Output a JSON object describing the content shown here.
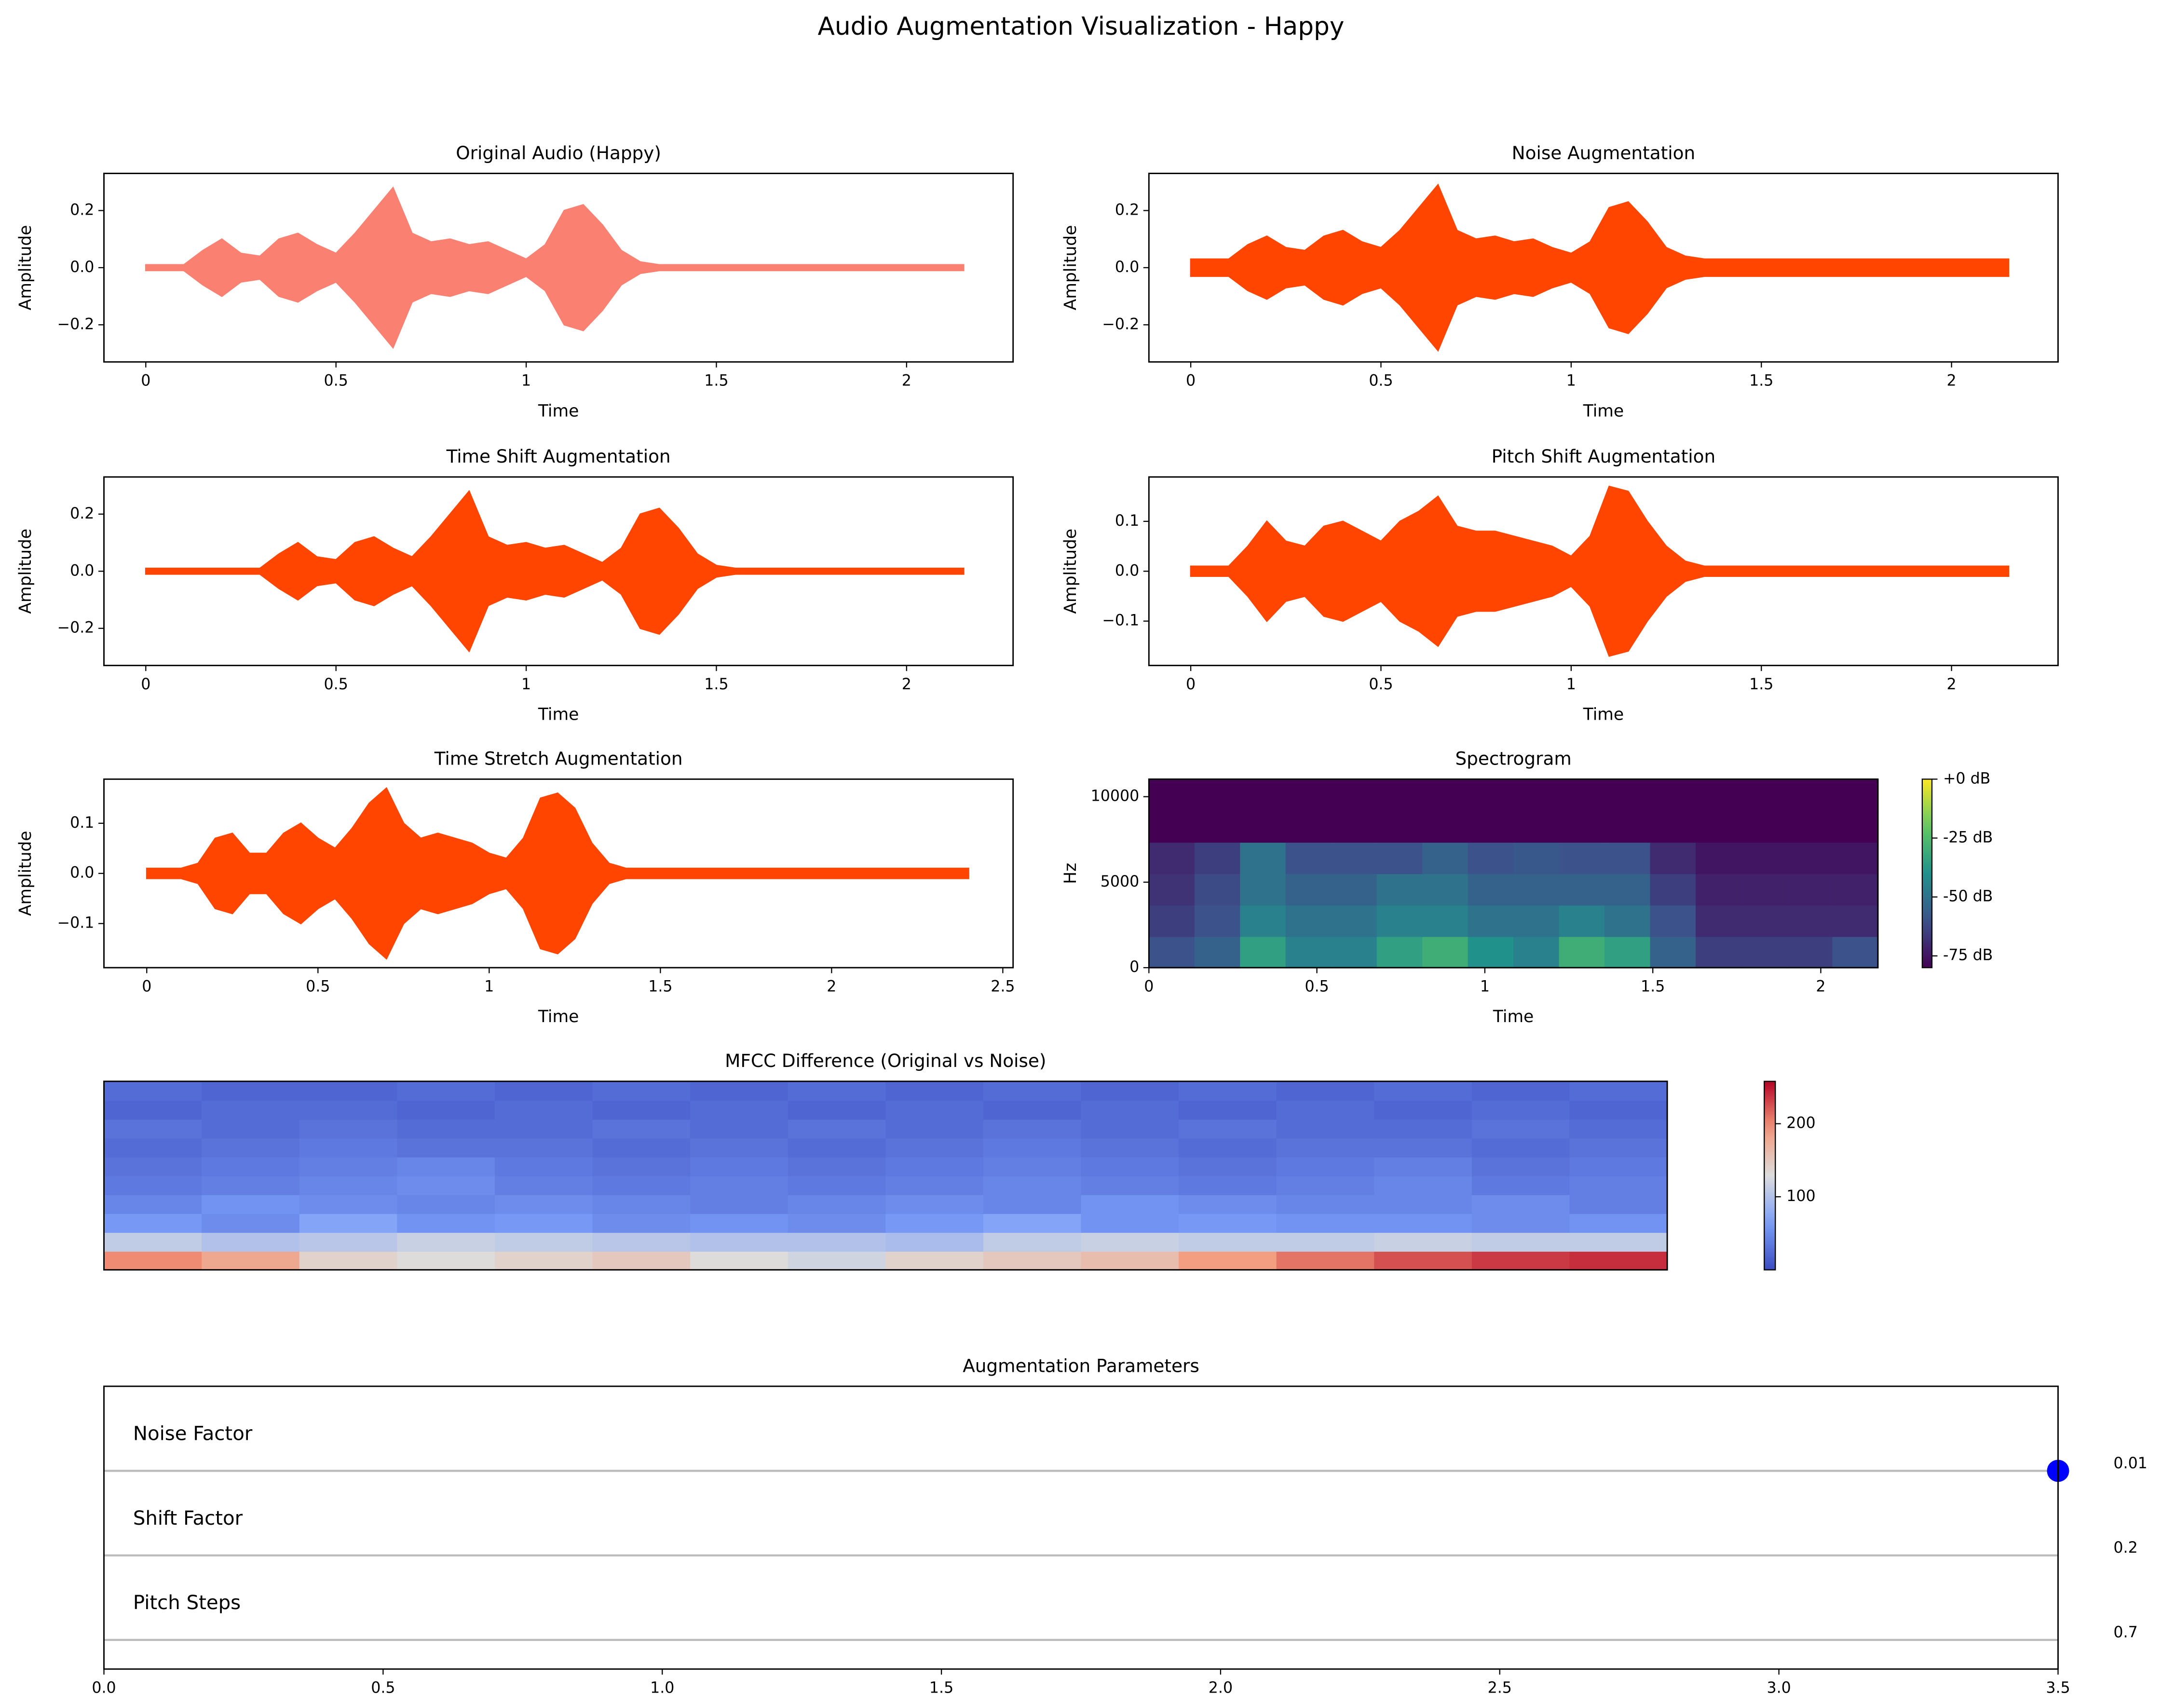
{
  "title": "Audio Augmentation Visualization - Happy",
  "chart_data": [
    {
      "type": "line",
      "title": "Original Audio (Happy)",
      "xlabel": "Time",
      "ylabel": "Amplitude",
      "color": "#fa8072",
      "x": [
        0,
        0.05,
        0.1,
        0.15,
        0.2,
        0.25,
        0.3,
        0.35,
        0.4,
        0.45,
        0.5,
        0.55,
        0.6,
        0.65,
        0.7,
        0.75,
        0.8,
        0.85,
        0.9,
        0.95,
        1,
        1.05,
        1.1,
        1.15,
        1.2,
        1.25,
        1.3,
        1.35,
        1.4,
        1.45,
        1.5,
        1.55,
        1.6,
        1.65,
        1.7,
        1.75,
        1.8,
        1.85,
        1.9,
        1.95,
        2,
        2.05,
        2.1,
        2.15
      ],
      "values": [
        0.01,
        0.01,
        0.01,
        0.06,
        0.1,
        0.05,
        0.04,
        0.1,
        0.12,
        0.08,
        0.05,
        0.12,
        0.2,
        0.28,
        0.12,
        0.09,
        0.1,
        0.08,
        0.09,
        0.06,
        0.03,
        0.08,
        0.2,
        0.22,
        0.15,
        0.06,
        0.02,
        0.01,
        0.01,
        0.01,
        0.01,
        0.01,
        0.01,
        0.01,
        0.01,
        0.01,
        0.01,
        0.01,
        0.01,
        0.01,
        0.01,
        0.01,
        0.01,
        0.01
      ],
      "xlim": [
        -0.11,
        2.28
      ],
      "ylim": [
        -0.33,
        0.33
      ],
      "xticks": [
        0,
        0.5,
        1,
        1.5,
        2
      ],
      "yticks": [
        {
          "value": -0.2,
          "label": "−0.2"
        },
        {
          "value": 0,
          "label": "0.0"
        },
        0.2
      ]
    },
    {
      "type": "line",
      "title": "Noise Augmentation",
      "xlabel": "Time",
      "ylabel": "Amplitude",
      "color": "#ff4500",
      "x": [
        0,
        0.05,
        0.1,
        0.15,
        0.2,
        0.25,
        0.3,
        0.35,
        0.4,
        0.45,
        0.5,
        0.55,
        0.6,
        0.65,
        0.7,
        0.75,
        0.8,
        0.85,
        0.9,
        0.95,
        1,
        1.05,
        1.1,
        1.15,
        1.2,
        1.25,
        1.3,
        1.35,
        1.4,
        1.45,
        1.5,
        1.55,
        1.6,
        1.65,
        1.7,
        1.75,
        1.8,
        1.85,
        1.9,
        1.95,
        2,
        2.05,
        2.1,
        2.15
      ],
      "values": [
        0.03,
        0.03,
        0.03,
        0.08,
        0.11,
        0.07,
        0.06,
        0.11,
        0.13,
        0.09,
        0.07,
        0.13,
        0.21,
        0.29,
        0.13,
        0.1,
        0.11,
        0.09,
        0.1,
        0.07,
        0.05,
        0.09,
        0.21,
        0.23,
        0.16,
        0.07,
        0.04,
        0.03,
        0.03,
        0.03,
        0.03,
        0.03,
        0.03,
        0.03,
        0.03,
        0.03,
        0.03,
        0.03,
        0.03,
        0.03,
        0.03,
        0.03,
        0.03,
        0.03
      ],
      "xlim": [
        -0.11,
        2.28
      ],
      "ylim": [
        -0.33,
        0.33
      ],
      "xticks": [
        0,
        0.5,
        1,
        1.5,
        2
      ],
      "yticks": [
        {
          "value": -0.2,
          "label": "−0.2"
        },
        {
          "value": 0,
          "label": "0.0"
        },
        0.2
      ]
    },
    {
      "type": "line",
      "title": "Time Shift Augmentation",
      "xlabel": "Time",
      "ylabel": "Amplitude",
      "color": "#ff4500",
      "x": [
        0,
        0.05,
        0.1,
        0.15,
        0.2,
        0.25,
        0.3,
        0.35,
        0.4,
        0.45,
        0.5,
        0.55,
        0.6,
        0.65,
        0.7,
        0.75,
        0.8,
        0.85,
        0.9,
        0.95,
        1,
        1.05,
        1.1,
        1.15,
        1.2,
        1.25,
        1.3,
        1.35,
        1.4,
        1.45,
        1.5,
        1.55,
        1.6,
        1.65,
        1.7,
        1.75,
        1.8,
        1.85,
        1.9,
        1.95,
        2,
        2.05,
        2.1,
        2.15
      ],
      "values": [
        0.01,
        0.01,
        0.01,
        0.01,
        0.01,
        0.01,
        0.01,
        0.06,
        0.1,
        0.05,
        0.04,
        0.1,
        0.12,
        0.08,
        0.05,
        0.12,
        0.2,
        0.28,
        0.12,
        0.09,
        0.1,
        0.08,
        0.09,
        0.06,
        0.03,
        0.08,
        0.2,
        0.22,
        0.15,
        0.06,
        0.02,
        0.01,
        0.01,
        0.01,
        0.01,
        0.01,
        0.01,
        0.01,
        0.01,
        0.01,
        0.01,
        0.01,
        0.01,
        0.01
      ],
      "xlim": [
        -0.11,
        2.28
      ],
      "ylim": [
        -0.33,
        0.33
      ],
      "xticks": [
        0,
        0.5,
        1,
        1.5,
        2
      ],
      "yticks": [
        {
          "value": -0.2,
          "label": "−0.2"
        },
        {
          "value": 0,
          "label": "0.0"
        },
        0.2
      ]
    },
    {
      "type": "line",
      "title": "Pitch Shift Augmentation",
      "xlabel": "Time",
      "ylabel": "Amplitude",
      "color": "#ff4500",
      "x": [
        0,
        0.05,
        0.1,
        0.15,
        0.2,
        0.25,
        0.3,
        0.35,
        0.4,
        0.45,
        0.5,
        0.55,
        0.6,
        0.65,
        0.7,
        0.75,
        0.8,
        0.85,
        0.9,
        0.95,
        1,
        1.05,
        1.1,
        1.15,
        1.2,
        1.25,
        1.3,
        1.35,
        1.4,
        1.45,
        1.5,
        1.55,
        1.6,
        1.65,
        1.7,
        1.75,
        1.8,
        1.85,
        1.9,
        1.95,
        2,
        2.05,
        2.1,
        2.15
      ],
      "values": [
        0.01,
        0.01,
        0.01,
        0.05,
        0.1,
        0.06,
        0.05,
        0.09,
        0.1,
        0.08,
        0.06,
        0.1,
        0.12,
        0.15,
        0.09,
        0.08,
        0.08,
        0.07,
        0.06,
        0.05,
        0.03,
        0.07,
        0.17,
        0.16,
        0.1,
        0.05,
        0.02,
        0.01,
        0.01,
        0.01,
        0.01,
        0.01,
        0.01,
        0.01,
        0.01,
        0.01,
        0.01,
        0.01,
        0.01,
        0.01,
        0.01,
        0.01,
        0.01,
        0.01
      ],
      "xlim": [
        -0.11,
        2.28
      ],
      "ylim": [
        -0.189,
        0.189
      ],
      "xticks": [
        0,
        0.5,
        1,
        1.5,
        2
      ],
      "yticks": [
        {
          "value": -0.1,
          "label": "−0.1"
        },
        {
          "value": 0,
          "label": "0.0"
        },
        0.1
      ]
    },
    {
      "type": "line",
      "title": "Time Stretch Augmentation",
      "xlabel": "Time",
      "ylabel": "Amplitude",
      "color": "#ff4500",
      "x": [
        0,
        0.05,
        0.1,
        0.15,
        0.2,
        0.25,
        0.3,
        0.35,
        0.4,
        0.45,
        0.5,
        0.55,
        0.6,
        0.65,
        0.7,
        0.75,
        0.8,
        0.85,
        0.9,
        0.95,
        1,
        1.05,
        1.1,
        1.15,
        1.2,
        1.25,
        1.3,
        1.35,
        1.4,
        1.45,
        1.5,
        1.55,
        1.6,
        1.65,
        1.7,
        1.75,
        1.8,
        1.85,
        1.9,
        1.95,
        2,
        2.05,
        2.1,
        2.15,
        2.2,
        2.25,
        2.3,
        2.35,
        2.4
      ],
      "values": [
        0.01,
        0.01,
        0.01,
        0.02,
        0.07,
        0.08,
        0.04,
        0.04,
        0.08,
        0.1,
        0.07,
        0.05,
        0.09,
        0.14,
        0.17,
        0.1,
        0.07,
        0.08,
        0.07,
        0.06,
        0.04,
        0.03,
        0.07,
        0.15,
        0.16,
        0.13,
        0.06,
        0.02,
        0.01,
        0.01,
        0.01,
        0.01,
        0.01,
        0.01,
        0.01,
        0.01,
        0.01,
        0.01,
        0.01,
        0.01,
        0.01,
        0.01,
        0.01,
        0.01,
        0.01,
        0.01,
        0.01,
        0.01,
        0.01
      ],
      "xlim": [
        -0.125,
        2.53
      ],
      "ylim": [
        -0.188,
        0.188
      ],
      "xticks": [
        0,
        0.5,
        1,
        1.5,
        2,
        2.5
      ],
      "yticks": [
        {
          "value": -0.1,
          "label": "−0.1"
        },
        {
          "value": 0,
          "label": "0.0"
        },
        0.1
      ]
    },
    {
      "type": "heatmap",
      "title": "Spectrogram",
      "xlabel": "Time",
      "ylabel": "Hz",
      "colormap": "viridis",
      "xlim": [
        0,
        2.17
      ],
      "ylim": [
        0,
        11025
      ],
      "xticks": [
        0,
        0.5,
        1,
        1.5,
        2
      ],
      "yticks": [
        0,
        5000,
        10000
      ],
      "clim": [
        -80,
        0
      ],
      "cticks": [
        {
          "value": 0,
          "label": "+0 dB"
        },
        {
          "value": -25,
          "label": "-25 dB"
        },
        {
          "value": -50,
          "label": "-50 dB"
        },
        {
          "value": -75,
          "label": "-75 dB"
        }
      ],
      "matrix": [
        [
          -60,
          -55,
          -35,
          -45,
          -45,
          -35,
          -30,
          -40,
          -45,
          -30,
          -35,
          -55,
          -65,
          -65,
          -65,
          -60
        ],
        [
          -65,
          -60,
          -45,
          -50,
          -50,
          -45,
          -45,
          -50,
          -50,
          -45,
          -50,
          -60,
          -70,
          -70,
          -70,
          -70
        ],
        [
          -68,
          -62,
          -50,
          -55,
          -55,
          -50,
          -50,
          -55,
          -55,
          -55,
          -55,
          -65,
          -72,
          -72,
          -72,
          -72
        ],
        [
          -70,
          -65,
          -50,
          -60,
          -60,
          -60,
          -55,
          -60,
          -58,
          -60,
          -60,
          -70,
          -75,
          -75,
          -75,
          -75
        ],
        [
          -80,
          -80,
          -80,
          -80,
          -80,
          -80,
          -80,
          -80,
          -80,
          -80,
          -80,
          -80,
          -80,
          -80,
          -80,
          -80
        ],
        [
          -80,
          -80,
          -80,
          -80,
          -80,
          -80,
          -80,
          -80,
          -80,
          -80,
          -80,
          -80,
          -80,
          -80,
          -80,
          -80
        ]
      ]
    },
    {
      "type": "heatmap",
      "title": "MFCC Difference (Original vs Noise)",
      "colormap": "coolwarm",
      "clim": [
        0,
        258
      ],
      "cticks": [
        100,
        200
      ],
      "matrix": [
        [
          200,
          180,
          140,
          130,
          140,
          150,
          130,
          120,
          140,
          150,
          160,
          190,
          210,
          225,
          235,
          240
        ],
        [
          110,
          100,
          105,
          115,
          110,
          105,
          100,
          100,
          95,
          110,
          115,
          110,
          110,
          115,
          110,
          110
        ],
        [
          60,
          50,
          70,
          55,
          60,
          50,
          55,
          50,
          60,
          70,
          55,
          60,
          55,
          55,
          50,
          55
        ],
        [
          45,
          55,
          50,
          45,
          50,
          45,
          40,
          45,
          50,
          45,
          55,
          50,
          45,
          45,
          50,
          40
        ],
        [
          35,
          40,
          45,
          50,
          40,
          35,
          40,
          35,
          40,
          45,
          40,
          35,
          40,
          45,
          35,
          40
        ],
        [
          30,
          35,
          40,
          45,
          35,
          30,
          35,
          30,
          35,
          40,
          35,
          30,
          35,
          40,
          30,
          35
        ],
        [
          25,
          30,
          35,
          30,
          30,
          25,
          30,
          25,
          30,
          35,
          30,
          25,
          30,
          30,
          25,
          30
        ],
        [
          30,
          25,
          30,
          25,
          25,
          30,
          25,
          30,
          25,
          30,
          25,
          30,
          25,
          25,
          30,
          25
        ],
        [
          20,
          25,
          25,
          20,
          25,
          20,
          25,
          20,
          25,
          20,
          25,
          20,
          25,
          20,
          25,
          20
        ],
        [
          25,
          20,
          20,
          25,
          20,
          25,
          20,
          25,
          20,
          25,
          20,
          25,
          20,
          25,
          20,
          25
        ]
      ]
    },
    {
      "type": "dot",
      "title": "Augmentation Parameters",
      "color": "#0000ff",
      "categories": [
        "Noise Factor",
        "Shift Factor",
        "Pitch Steps"
      ],
      "values": [
        0.01,
        0.2,
        0.7
      ],
      "marker_x": 3.5,
      "xlim": [
        0,
        3.5
      ],
      "xticks": [
        {
          "value": 0,
          "label": "0.0"
        },
        0.5,
        {
          "value": 1,
          "label": "1.0"
        },
        1.5,
        {
          "value": 2,
          "label": "2.0"
        },
        2.5,
        {
          "value": 3,
          "label": "3.0"
        },
        3.5
      ]
    }
  ]
}
